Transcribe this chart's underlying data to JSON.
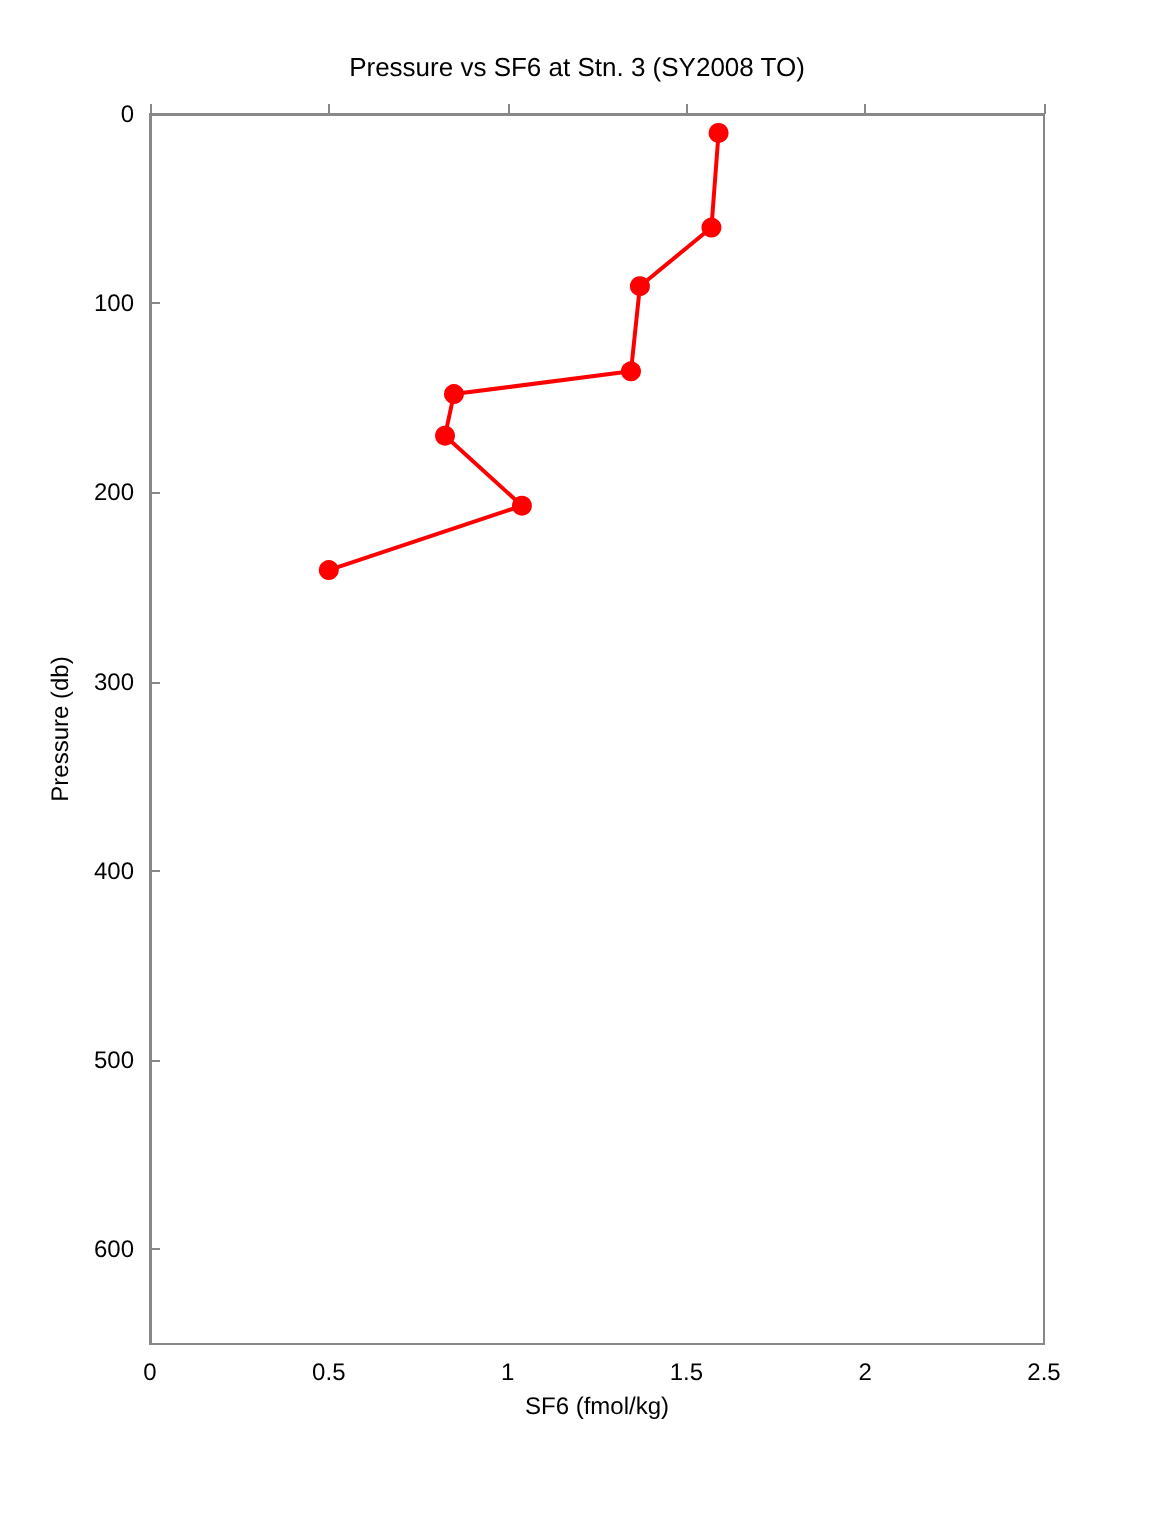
{
  "chart_data": {
    "type": "line",
    "title": "Pressure vs SF6 at Stn. 3 (SY2008 TO)",
    "xlabel": "SF6 (fmol/kg)",
    "ylabel": "Pressure (db)",
    "x": [
      1.59,
      1.57,
      1.37,
      1.345,
      0.85,
      0.825,
      1.04,
      0.5
    ],
    "series": [
      {
        "color": "#ff0000",
        "values": [
          10,
          60,
          91,
          136,
          148,
          170,
          207,
          241
        ]
      }
    ],
    "xlim": [
      0,
      2.5
    ],
    "xticks": [
      0,
      0.5,
      1,
      1.5,
      2,
      2.5
    ],
    "ylim": [
      650,
      0
    ],
    "yticks": [
      0,
      100,
      200,
      300,
      400,
      500,
      600
    ],
    "grid": false,
    "marker": "circle",
    "line_style": "solid"
  }
}
